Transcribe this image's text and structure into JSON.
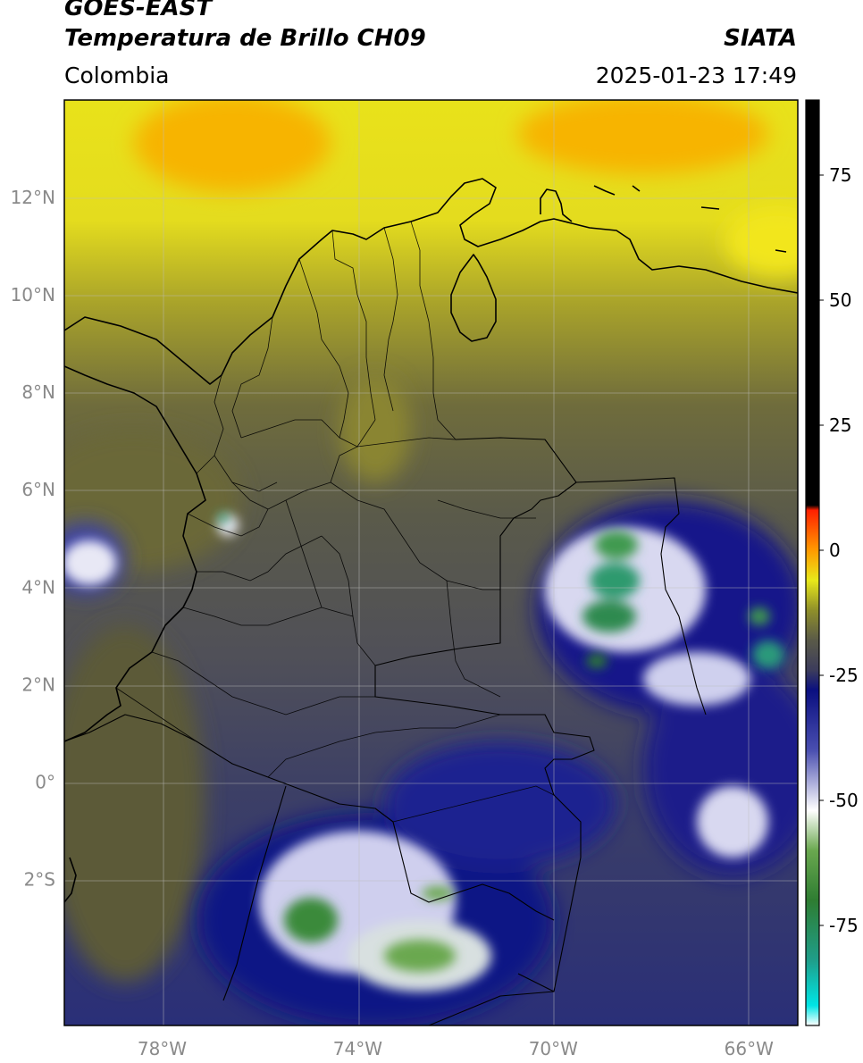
{
  "header": {
    "satellite": "GOES-EAST",
    "product": "Temperatura de Brillo CH09",
    "brand": "SIATA",
    "region": "Colombia",
    "timestamp": "2025-01-23 17:49"
  },
  "map": {
    "lon_range": [
      -80,
      -65
    ],
    "lat_range": [
      -5,
      14
    ],
    "lat_ticks": [
      {
        "value": 12,
        "label": "12°N"
      },
      {
        "value": 10,
        "label": "10°N"
      },
      {
        "value": 8,
        "label": "8°N"
      },
      {
        "value": 6,
        "label": "6°N"
      },
      {
        "value": 4,
        "label": "4°N"
      },
      {
        "value": 2,
        "label": "2°N"
      },
      {
        "value": 0,
        "label": "0°"
      },
      {
        "value": -2,
        "label": "2°S"
      }
    ],
    "lon_ticks": [
      {
        "value": -78,
        "label": "78°W"
      },
      {
        "value": -74,
        "label": "74°W"
      },
      {
        "value": -70,
        "label": "70°W"
      },
      {
        "value": -66,
        "label": "66°W"
      }
    ],
    "gridlines": true
  },
  "colorbar": {
    "range": [
      -95,
      90
    ],
    "ticks": [
      {
        "value": 75,
        "label": "75"
      },
      {
        "value": 50,
        "label": "50"
      },
      {
        "value": 25,
        "label": "25"
      },
      {
        "value": 0,
        "label": "0"
      },
      {
        "value": -25,
        "label": "-25"
      },
      {
        "value": -50,
        "label": "-50"
      },
      {
        "value": -75,
        "label": "-75"
      }
    ],
    "stops": [
      {
        "value": -95,
        "color": "#ffffff"
      },
      {
        "value": -91,
        "color": "#00e5e5"
      },
      {
        "value": -82,
        "color": "#1f9e8a"
      },
      {
        "value": -70,
        "color": "#2e7d32"
      },
      {
        "value": -60,
        "color": "#6aa84f"
      },
      {
        "value": -52,
        "color": "#ffffff"
      },
      {
        "value": -40,
        "color": "#4a4fb0"
      },
      {
        "value": -28,
        "color": "#0a0f80"
      },
      {
        "value": -24,
        "color": "#3c3c5c"
      },
      {
        "value": -18,
        "color": "#5a5a48"
      },
      {
        "value": -12,
        "color": "#8f8f2a"
      },
      {
        "value": -6,
        "color": "#e8e81a"
      },
      {
        "value": 0,
        "color": "#ff9a00"
      },
      {
        "value": 8,
        "color": "#ff2000"
      },
      {
        "value": 9,
        "color": "#000000"
      },
      {
        "value": 90,
        "color": "#000000"
      }
    ]
  }
}
